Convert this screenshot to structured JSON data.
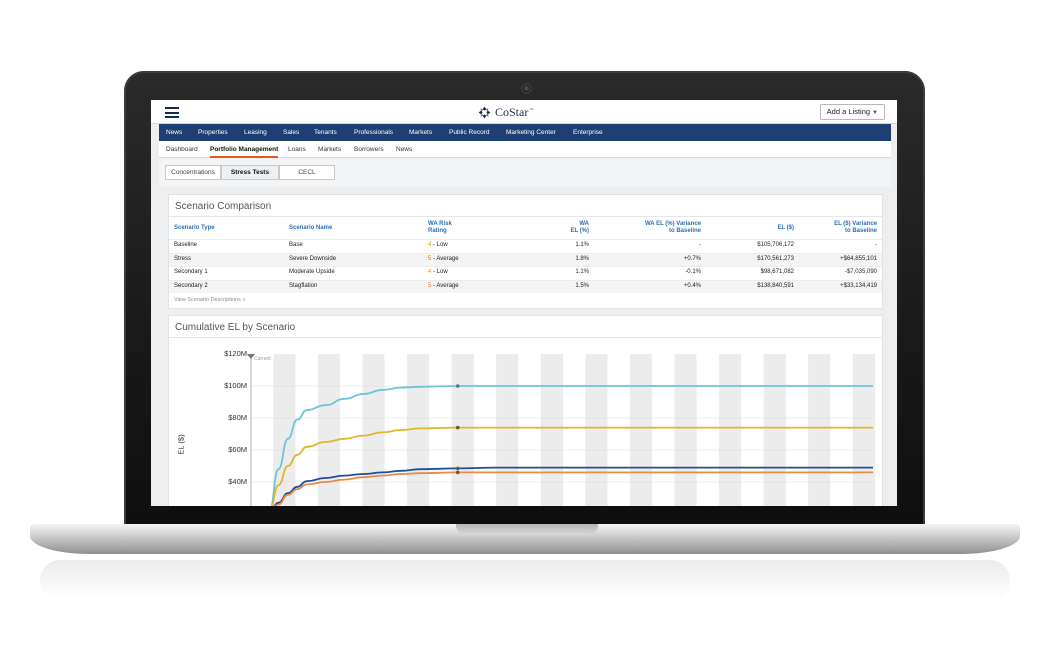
{
  "app": {
    "logo_text": "CoStar",
    "logo_tm": "™",
    "add_listing": "Add a Listing",
    "colors": {
      "nav": "#1e3f73",
      "active_underline": "#e25a1c",
      "link": "#2e6fb6"
    }
  },
  "main_nav": [
    "News",
    "Properties",
    "Leasing",
    "Sales",
    "Tenants",
    "Professionals",
    "Markets",
    "Public Record",
    "Marketing Center",
    "Enterprise"
  ],
  "sub_nav": {
    "items": [
      "Dashboard",
      "Portfolio Management",
      "Loans",
      "Markets",
      "Borrowers",
      "News"
    ],
    "active": "Portfolio Management"
  },
  "tabs": {
    "items": [
      "Concentrations",
      "Stress Tests",
      "CECL"
    ],
    "active": "Stress Tests"
  },
  "scenario_comparison": {
    "title": "Scenario Comparison",
    "headers": {
      "type": "Scenario Type",
      "name": "Scenario Name",
      "rating_1": "WA Risk",
      "rating_2": "Rating",
      "wael_1": "WA",
      "wael_2": "EL (%)",
      "wael_var_1": "WA EL (%) Variance",
      "wael_var_2": "to Baseline",
      "el": "EL ($)",
      "el_var_1": "EL ($) Variance",
      "el_var_2": "to Baseline"
    },
    "rows": [
      {
        "type": "Baseline",
        "name": "Base",
        "rating_num": "4",
        "rating_text": " - Low",
        "rating_color": "#c9a400",
        "wa_el": "1.1%",
        "wa_el_var": "-",
        "el": "$105,706,172",
        "el_var": "-"
      },
      {
        "type": "Stress",
        "name": "Severe Downside",
        "rating_num": "5",
        "rating_text": " - Average",
        "rating_color": "#e2742a",
        "wa_el": "1.8%",
        "wa_el_var": "+0.7%",
        "el": "$170,561,273",
        "el_var": "+$64,855,101"
      },
      {
        "type": "Secondary 1",
        "name": "Moderate Upside",
        "rating_num": "4",
        "rating_text": " - Low",
        "rating_color": "#c9a400",
        "wa_el": "1.1%",
        "wa_el_var": "-0.1%",
        "el": "$98,671,082",
        "el_var": "-$7,035,090"
      },
      {
        "type": "Secondary 2",
        "name": "Stagflation",
        "rating_num": "5",
        "rating_text": " - Average",
        "rating_color": "#e2742a",
        "wa_el": "1.5%",
        "wa_el_var": "+0.4%",
        "el": "$138,840,591",
        "el_var": "+$33,134,419"
      }
    ],
    "link": "View Scenario Descriptions »"
  },
  "cumulative_chart": {
    "title": "Cumulative EL by Scenario",
    "current_label": "Current"
  },
  "chart_data": {
    "type": "line",
    "title": "Cumulative EL by Scenario",
    "ylabel": "EL ($)",
    "xlabel": "",
    "y_ticks": [
      "$120M",
      "$100M",
      "$80M",
      "$60M",
      "$40M"
    ],
    "ylim": [
      20,
      120
    ],
    "x": [
      0,
      0.5,
      1,
      1.5,
      2,
      3,
      4,
      5,
      6,
      7,
      8,
      10,
      12,
      14,
      16,
      18,
      20,
      22,
      24,
      26,
      28,
      30,
      32
    ],
    "series": [
      {
        "color": "#6ec3d8",
        "values": [
          20,
          48,
          67,
          79,
          85,
          88,
          92,
          95,
          97.5,
          99,
          99.5,
          100,
          100,
          100,
          100,
          100,
          100,
          100,
          100,
          100,
          100,
          100,
          100
        ]
      },
      {
        "color": "#e3b52a",
        "values": [
          20,
          38,
          50,
          57,
          62,
          65,
          67,
          69,
          71,
          72.5,
          73.5,
          74,
          74,
          74,
          74,
          74,
          74,
          74,
          74,
          74,
          74,
          74,
          74
        ]
      },
      {
        "color": "#1e4f9c",
        "values": [
          20,
          27,
          33,
          37,
          40.5,
          42.5,
          44,
          45,
          46,
          47,
          48,
          48.5,
          49,
          49,
          49,
          49,
          49,
          49,
          49,
          49,
          49,
          49,
          49
        ]
      },
      {
        "color": "#e88b45",
        "values": [
          20,
          26,
          32,
          35.5,
          38.5,
          40,
          41.5,
          43,
          44,
          45,
          45.5,
          46,
          46,
          46,
          46,
          46,
          46,
          46,
          46,
          46,
          46,
          46,
          46
        ]
      }
    ],
    "marker_x": 10,
    "grid": true
  }
}
